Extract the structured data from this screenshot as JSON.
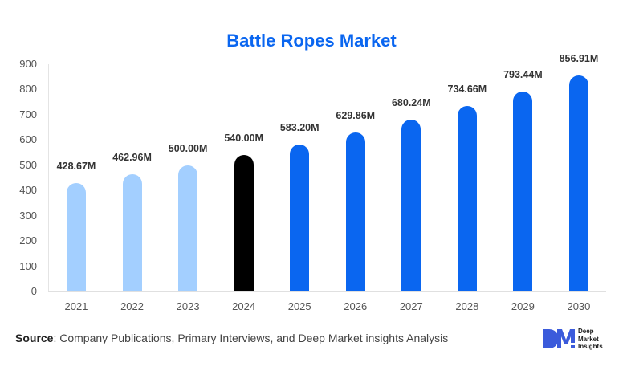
{
  "chart_data": {
    "type": "bar",
    "title": "Battle Ropes Market",
    "categories": [
      "2021",
      "2022",
      "2023",
      "2024",
      "2025",
      "2026",
      "2027",
      "2028",
      "2029",
      "2030"
    ],
    "values": [
      428.67,
      462.96,
      500.0,
      540.0,
      583.2,
      629.86,
      680.24,
      734.66,
      793.44,
      856.91
    ],
    "data_labels": [
      "428.67M",
      "462.96M",
      "500.00M",
      "540.00M",
      "583.20M",
      "629.86M",
      "680.24M",
      "734.66M",
      "793.44M",
      "856.91M"
    ],
    "bar_colors": [
      "#a3cfff",
      "#a3cfff",
      "#a3cfff",
      "#000000",
      "#0a66f0",
      "#0a66f0",
      "#0a66f0",
      "#0a66f0",
      "#0a66f0",
      "#0a66f0"
    ],
    "xlabel": "",
    "ylabel": "",
    "ylim": [
      0,
      900
    ],
    "yticks": [
      0,
      100,
      200,
      300,
      400,
      500,
      600,
      700,
      800,
      900
    ],
    "unit": "M",
    "grid": false,
    "legend": "none"
  },
  "title": "Battle Ropes Market",
  "colors": {
    "title": "#0a66f0",
    "historical": "#a3cfff",
    "base_year": "#000000",
    "forecast": "#0a66f0"
  },
  "footer": {
    "source_label": "Source",
    "source_text": ": Company Publications, Primary Interviews, and Deep Market insights Analysis"
  },
  "logo": {
    "mark": "DM",
    "line1": "Deep",
    "line2": "Market",
    "line3": "Insights"
  }
}
